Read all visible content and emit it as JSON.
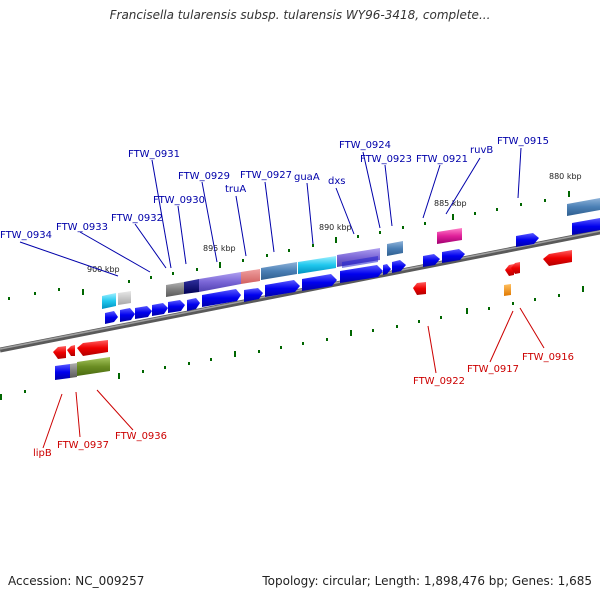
{
  "title": "Francisella tularensis subsp. tularensis WY96-3418, complete...",
  "footer": {
    "accession": "Accession: NC_009257",
    "summary": "Topology: circular; Length: 1,898,476 bp; Genes: 1,685"
  },
  "kbp_labels": {
    "k900": "900 kbp",
    "k895": "895 kbp",
    "k890": "890 kbp",
    "k885": "885 kbp",
    "k880": "880 kbp"
  },
  "gene_labels": {
    "ftw0934": "FTW_0934",
    "ftw0933": "FTW_0933",
    "ftw0932": "FTW_0932",
    "ftw0931": "FTW_0931",
    "ftw0930": "FTW_0930",
    "ftw0929": "FTW_0929",
    "truA": "truA",
    "ftw0927": "FTW_0927",
    "guaA": "guaA",
    "dxs": "dxs",
    "ftw0924": "FTW_0924",
    "ftw0923": "FTW_0923",
    "ftw0921": "FTW_0921",
    "ruvB": "ruvB",
    "ftw0915": "FTW_0915",
    "lipB": "lipB",
    "ftw0937": "FTW_0937",
    "ftw0936": "FTW_0936",
    "ftw0922": "FTW_0922",
    "ftw0917": "FTW_0917",
    "ftw0916": "FTW_0916"
  },
  "colors": {
    "forward_cds": "#0000ee",
    "reverse_cds": "#ee0000",
    "backbone": "#808080",
    "tick": "#006600",
    "label_forward": "#0000aa",
    "label_reverse": "#cc0000"
  }
}
